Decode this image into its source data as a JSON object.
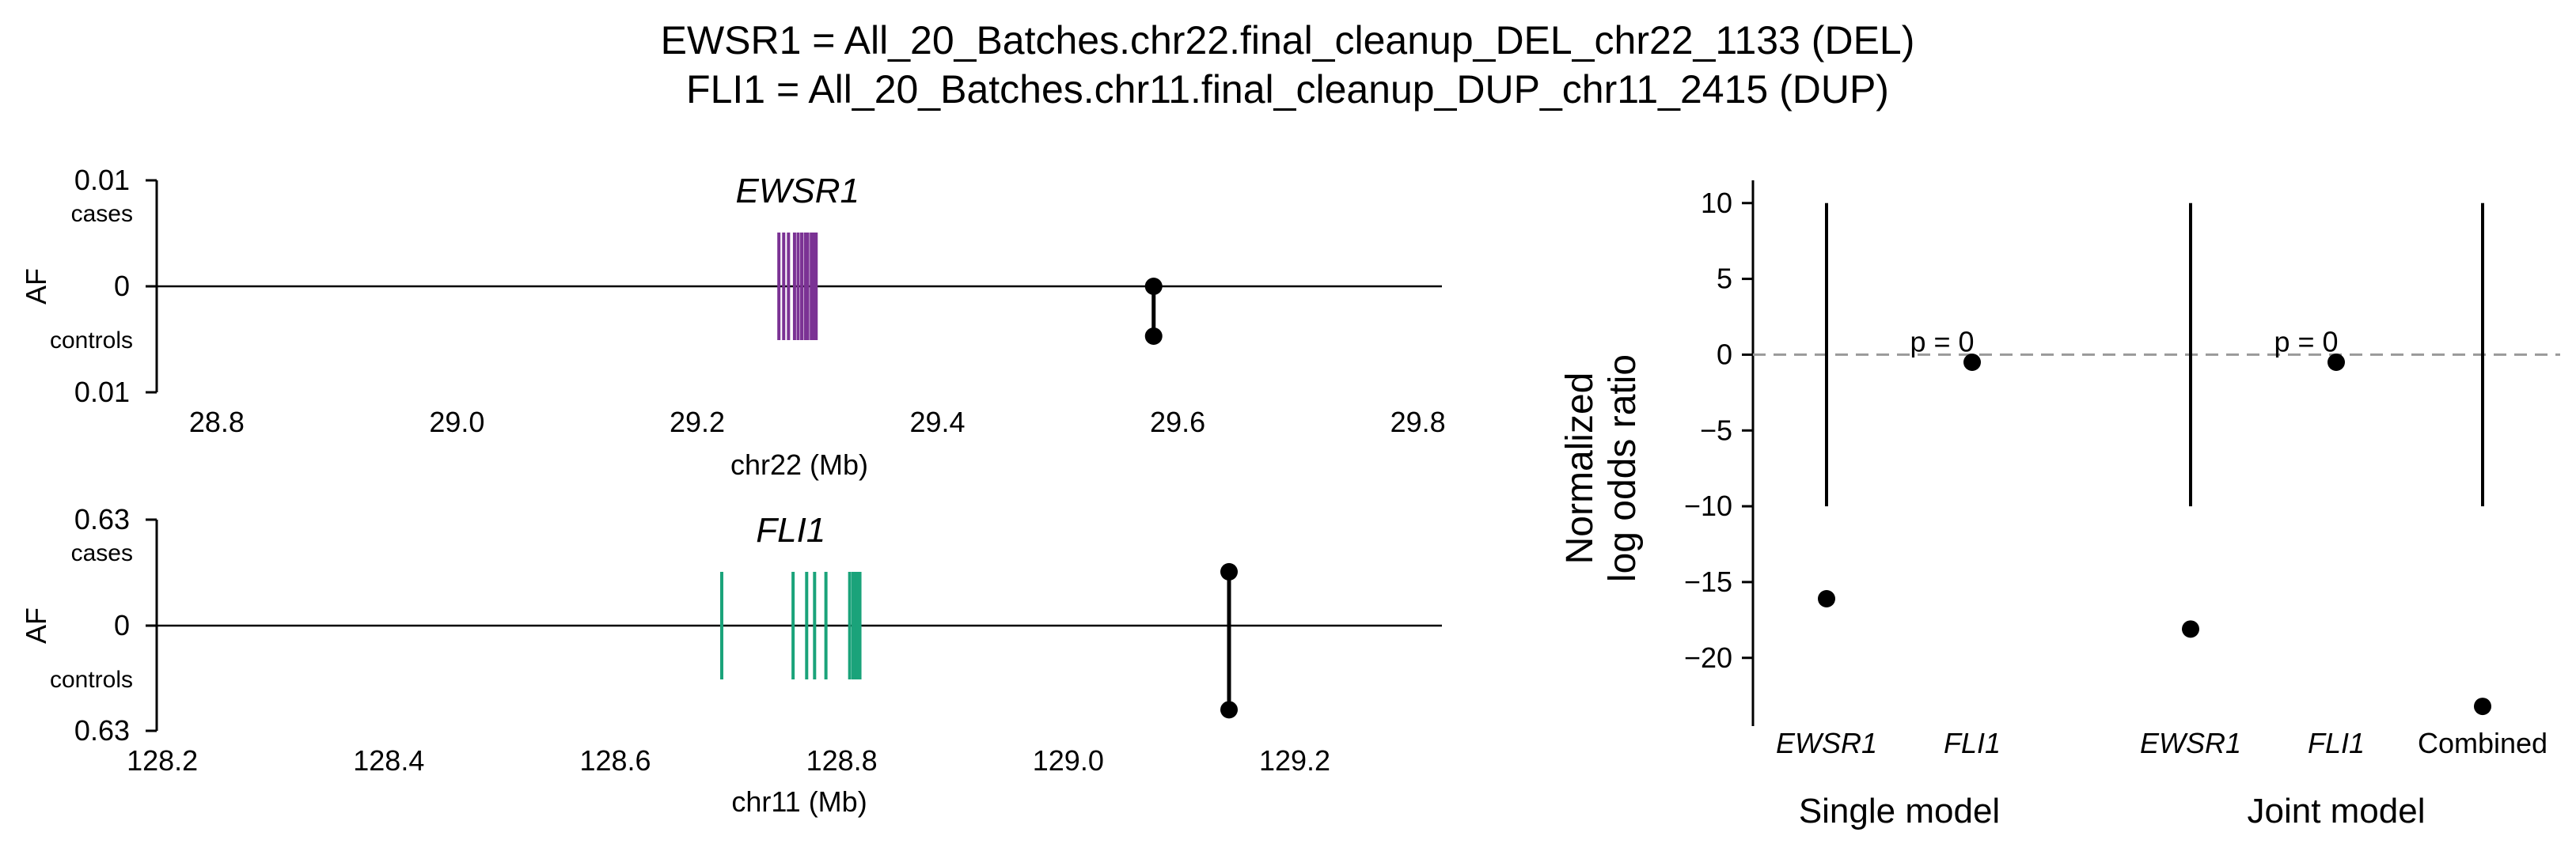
{
  "title_lines": [
    "EWSR1 = All_20_Batches.chr22.final_cleanup_DEL_chr22_1133 (DEL)",
    "FLI1 = All_20_Batches.chr11.final_cleanup_DUP_chr11_2415 (DUP)"
  ],
  "colors": {
    "EWSR1": "#7b3294",
    "FLI1": "#1aa37a",
    "reference": "#999999"
  },
  "chart_data": [
    {
      "type": "locus",
      "gene": "EWSR1",
      "ylabel": "AF",
      "y_top_label": "0.01",
      "y_mid_label": "0",
      "y_bottom_label": "0.01",
      "cases_label": "cases",
      "controls_label": "controls",
      "xlabel": "chr22 (Mb)",
      "xlim": [
        28.75,
        29.82
      ],
      "xticks": [
        "28.8",
        "29.0",
        "29.2",
        "29.4",
        "29.6",
        "29.8"
      ],
      "xtick_values": [
        28.8,
        29.0,
        29.2,
        29.4,
        29.6,
        29.8
      ],
      "exons_mb": [
        29.268,
        29.272,
        29.276,
        29.281,
        29.284,
        29.287,
        29.29,
        29.292,
        29.295,
        29.297,
        29.299
      ],
      "sv_position_mb": 29.58,
      "af_cases": 0.0,
      "af_controls": 0.0047,
      "af_max": 0.01
    },
    {
      "type": "locus",
      "gene": "FLI1",
      "ylabel": "AF",
      "y_top_label": "0.63",
      "y_mid_label": "0",
      "y_bottom_label": "0.63",
      "cases_label": "cases",
      "controls_label": "controls",
      "xlabel": "chr11 (Mb)",
      "xlim": [
        128.195,
        129.33
      ],
      "xticks": [
        "128.2",
        "128.4",
        "128.6",
        "128.8",
        "129.0",
        "129.2"
      ],
      "xtick_values": [
        128.2,
        128.4,
        128.6,
        128.8,
        129.0,
        129.2
      ],
      "exons_mb": [
        128.694,
        128.757,
        128.769,
        128.776,
        128.786,
        128.807,
        128.81,
        128.812,
        128.814,
        128.816
      ],
      "sv_position_mb": 129.142,
      "af_cases": 0.32,
      "af_controls": 0.5,
      "af_max": 0.63
    },
    {
      "type": "scatter",
      "ylabel_lines": [
        "Normalized",
        "log odds ratio"
      ],
      "ylim": [
        -24.5,
        11.5
      ],
      "yticks": [
        10,
        5,
        0,
        -5,
        -10,
        -15,
        -20
      ],
      "ytick_labels": [
        "10",
        "5",
        "0",
        "−5",
        "−10",
        "−15",
        "−20"
      ],
      "reference_line_y": 0,
      "groups": [
        {
          "label": "Single model",
          "categories": [
            "EWSR1",
            "FLI1"
          ]
        },
        {
          "label": "Joint model",
          "categories": [
            "EWSR1",
            "FLI1",
            "Combined"
          ]
        }
      ],
      "points": [
        {
          "group": 0,
          "category": "EWSR1",
          "y": -16.1,
          "ci": [
            -10,
            10
          ],
          "annotation": ""
        },
        {
          "group": 0,
          "category": "FLI1",
          "y": -0.5,
          "ci": null,
          "annotation": "p = 0"
        },
        {
          "group": 1,
          "category": "EWSR1",
          "y": -18.1,
          "ci": [
            -10,
            10
          ],
          "annotation": ""
        },
        {
          "group": 1,
          "category": "FLI1",
          "y": -0.5,
          "ci": null,
          "annotation": "p = 0"
        },
        {
          "group": 1,
          "category": "Combined",
          "y": -23.2,
          "ci": [
            -10,
            10
          ],
          "annotation": ""
        }
      ]
    }
  ]
}
